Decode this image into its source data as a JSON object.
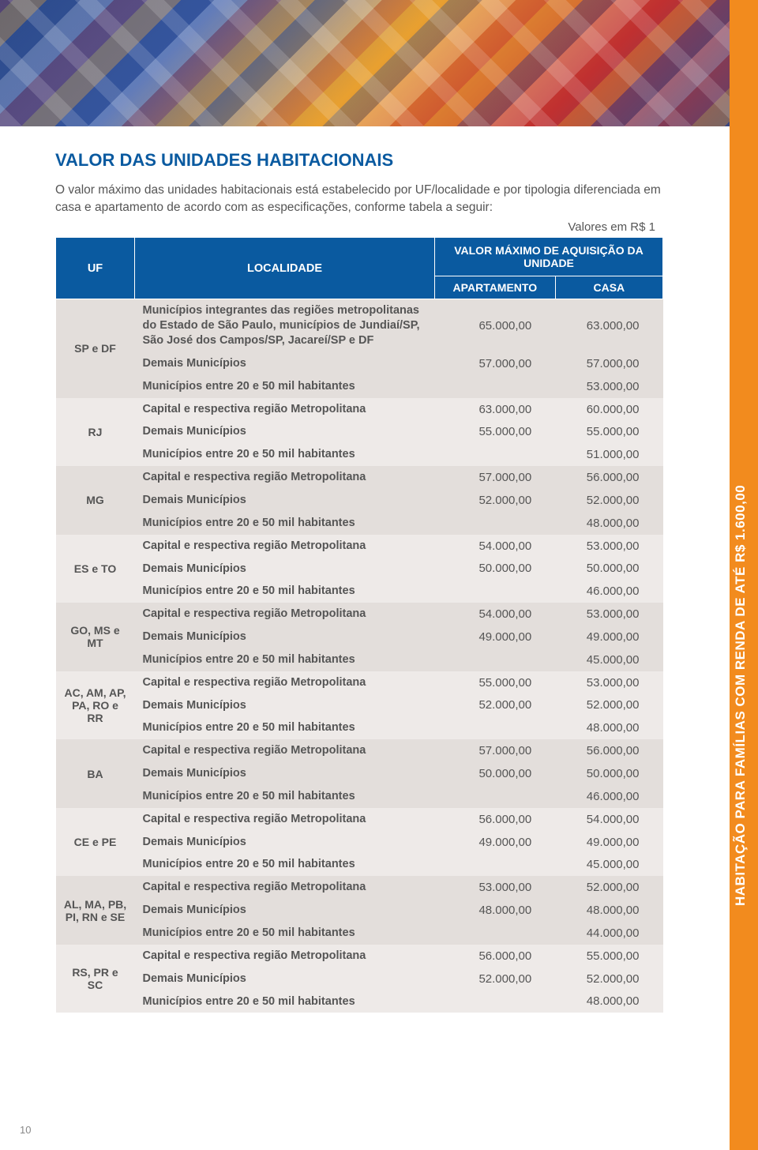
{
  "colors": {
    "primary_blue": "#0a5aa0",
    "orange_bar": "#f28b1e",
    "text_gray": "#555555",
    "shade_a": "#e3dedb",
    "shade_b": "#eeeae8",
    "white": "#ffffff"
  },
  "typography": {
    "title_fontsize": 22,
    "body_fontsize": 15.5,
    "table_fontsize": 14.5,
    "font_family": "Arial"
  },
  "sidebar_text": "HABITAÇÃO PARA FAMÍLIAS COM RENDA DE ATÉ R$ 1.600,00",
  "title": "VALOR DAS UNIDADES HABITACIONAIS",
  "intro": "O valor máximo das unidades habitacionais está estabelecido por UF/localidade e por tipologia diferenciada em casa e apartamento de acordo com as especificações, conforme tabela a seguir:",
  "unit_note": "Valores em R$ 1",
  "page_number": "10",
  "table": {
    "header": {
      "uf": "UF",
      "localidade": "LOCALIDADE",
      "valor_header": "VALOR MÁXIMO DE AQUISIÇÃO DA UNIDADE",
      "apartamento": "APARTAMENTO",
      "casa": "CASA"
    },
    "groups": [
      {
        "uf": "SP e DF",
        "shade": "a",
        "rows": [
          {
            "loc": "Municípios integrantes das regiões metropolitanas do Estado de São Paulo, municípios de Jundiaí/SP, São José dos Campos/SP, Jacareí/SP e DF",
            "apt": "65.000,00",
            "casa": "63.000,00"
          },
          {
            "loc": "Demais Municípios",
            "apt": "57.000,00",
            "casa": "57.000,00"
          },
          {
            "loc": "Municípios entre 20 e 50 mil habitantes",
            "apt": "",
            "casa": "53.000,00"
          }
        ]
      },
      {
        "uf": "RJ",
        "shade": "b",
        "rows": [
          {
            "loc": "Capital e respectiva região Metropolitana",
            "apt": "63.000,00",
            "casa": "60.000,00"
          },
          {
            "loc": "Demais Municípios",
            "apt": "55.000,00",
            "casa": "55.000,00"
          },
          {
            "loc": "Municípios entre 20 e 50 mil habitantes",
            "apt": "",
            "casa": "51.000,00"
          }
        ]
      },
      {
        "uf": "MG",
        "shade": "a",
        "rows": [
          {
            "loc": "Capital e respectiva região Metropolitana",
            "apt": "57.000,00",
            "casa": "56.000,00"
          },
          {
            "loc": "Demais Municípios",
            "apt": "52.000,00",
            "casa": "52.000,00"
          },
          {
            "loc": "Municípios entre 20 e 50 mil habitantes",
            "apt": "",
            "casa": "48.000,00"
          }
        ]
      },
      {
        "uf": "ES e TO",
        "shade": "b",
        "rows": [
          {
            "loc": "Capital e respectiva região Metropolitana",
            "apt": "54.000,00",
            "casa": "53.000,00"
          },
          {
            "loc": "Demais Municípios",
            "apt": "50.000,00",
            "casa": "50.000,00"
          },
          {
            "loc": "Municípios entre 20 e 50 mil habitantes",
            "apt": "",
            "casa": "46.000,00"
          }
        ]
      },
      {
        "uf": "GO, MS e MT",
        "shade": "a",
        "rows": [
          {
            "loc": "Capital e respectiva região Metropolitana",
            "apt": "54.000,00",
            "casa": "53.000,00"
          },
          {
            "loc": "Demais Municípios",
            "apt": "49.000,00",
            "casa": "49.000,00"
          },
          {
            "loc": "Municípios entre 20 e 50 mil habitantes",
            "apt": "",
            "casa": "45.000,00"
          }
        ]
      },
      {
        "uf": "AC, AM, AP, PA, RO e RR",
        "shade": "b",
        "rows": [
          {
            "loc": "Capital e respectiva região Metropolitana",
            "apt": "55.000,00",
            "casa": "53.000,00"
          },
          {
            "loc": "Demais Municípios",
            "apt": "52.000,00",
            "casa": "52.000,00"
          },
          {
            "loc": "Municípios entre 20 e 50 mil habitantes",
            "apt": "",
            "casa": "48.000,00"
          }
        ]
      },
      {
        "uf": "BA",
        "shade": "a",
        "rows": [
          {
            "loc": "Capital e respectiva região Metropolitana",
            "apt": "57.000,00",
            "casa": "56.000,00"
          },
          {
            "loc": "Demais Municípios",
            "apt": "50.000,00",
            "casa": "50.000,00"
          },
          {
            "loc": "Municípios entre 20 e 50 mil habitantes",
            "apt": "",
            "casa": "46.000,00"
          }
        ]
      },
      {
        "uf": "CE e PE",
        "shade": "b",
        "rows": [
          {
            "loc": "Capital e respectiva região Metropolitana",
            "apt": "56.000,00",
            "casa": "54.000,00"
          },
          {
            "loc": "Demais Municípios",
            "apt": "49.000,00",
            "casa": "49.000,00"
          },
          {
            "loc": "Municípios entre 20 e 50 mil habitantes",
            "apt": "",
            "casa": "45.000,00"
          }
        ]
      },
      {
        "uf": "AL, MA, PB, PI, RN e SE",
        "shade": "a",
        "rows": [
          {
            "loc": "Capital e respectiva região Metropolitana",
            "apt": "53.000,00",
            "casa": "52.000,00"
          },
          {
            "loc": "Demais Municípios",
            "apt": "48.000,00",
            "casa": "48.000,00"
          },
          {
            "loc": "Municípios entre 20 e 50 mil habitantes",
            "apt": "",
            "casa": "44.000,00"
          }
        ]
      },
      {
        "uf": "RS, PR e SC",
        "shade": "b",
        "rows": [
          {
            "loc": "Capital e respectiva região Metropolitana",
            "apt": "56.000,00",
            "casa": "55.000,00"
          },
          {
            "loc": "Demais Municípios",
            "apt": "52.000,00",
            "casa": "52.000,00"
          },
          {
            "loc": "Municípios entre 20 e 50 mil habitantes",
            "apt": "",
            "casa": "48.000,00"
          }
        ]
      }
    ]
  }
}
